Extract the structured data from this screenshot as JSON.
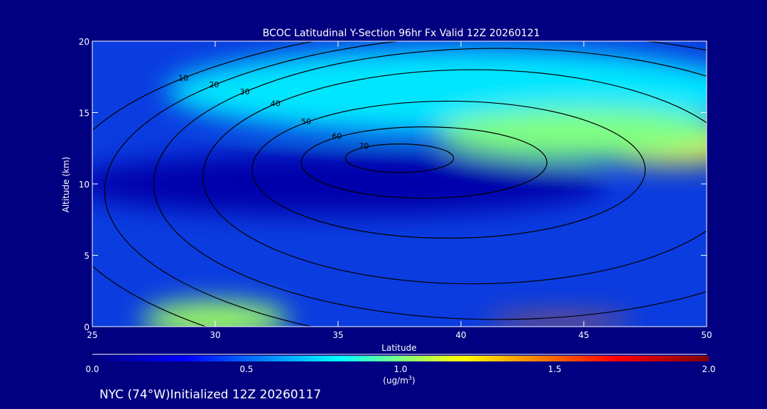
{
  "chart_data": {
    "type": "heatmap",
    "title": "BCOC Latitudinal Y-Section 96hr  Fx Valid 12Z 20260121",
    "xlabel": "Latitude",
    "ylabel": "Altitude (km)",
    "xlim": [
      25,
      50
    ],
    "ylim": [
      0,
      20
    ],
    "xticks": [
      "25",
      "30",
      "35",
      "40",
      "45",
      "50"
    ],
    "yticks": [
      "0",
      "5",
      "10",
      "15",
      "20"
    ],
    "colorbar": {
      "ticks": [
        "0.0",
        "0.5",
        "1.0",
        "1.5",
        "2.0"
      ],
      "range": [
        0,
        2
      ],
      "units": "(ug/m",
      "units_sup": "3",
      "units_end": ")",
      "colors": [
        "#000080",
        "#0000ff",
        "#00ffff",
        "#ffff00",
        "#ff0000",
        "#800000"
      ]
    },
    "field_regions": [
      {
        "lat": 40,
        "alt": 16.5,
        "rlat": 12,
        "ralt": 3,
        "value": 0.75
      },
      {
        "lat": 48.5,
        "alt": 12.5,
        "rlat": 3,
        "ralt": 1.2,
        "value": 1.25
      },
      {
        "lat": 45,
        "alt": 13.5,
        "rlat": 6,
        "ralt": 1.8,
        "value": 1.0
      },
      {
        "lat": 35,
        "alt": 10,
        "rlat": 11,
        "ralt": 2.2,
        "value": 0.1
      },
      {
        "lat": 30,
        "alt": 0.5,
        "rlat": 3,
        "ralt": 1.3,
        "value": 1.05
      },
      {
        "lat": 44,
        "alt": 0.4,
        "rlat": 3,
        "ralt": 0.3,
        "value": 1.5
      }
    ],
    "contours": [
      {
        "level": "70",
        "lat": 37.5,
        "alt": 11.8,
        "rlat": 2.2,
        "ralt": 1.0
      },
      {
        "level": "60",
        "lat": 38.5,
        "alt": 11.5,
        "rlat": 5,
        "ralt": 2.5
      },
      {
        "level": "50",
        "lat": 39.5,
        "alt": 11,
        "rlat": 8,
        "ralt": 4.8
      },
      {
        "level": "40",
        "lat": 40.5,
        "alt": 10.5,
        "rlat": 11,
        "ralt": 7.5
      },
      {
        "level": "30",
        "lat": 41.5,
        "alt": 10,
        "rlat": 14,
        "ralt": 9.5
      },
      {
        "level": "20",
        "lat": 42.5,
        "alt": 9.5,
        "rlat": 17,
        "ralt": 11
      },
      {
        "level": "10",
        "lat": 43.5,
        "alt": 9,
        "rlat": 20,
        "ralt": 12.5
      }
    ],
    "footer": "NYC (74°W)Initialized 12Z 20260117"
  }
}
